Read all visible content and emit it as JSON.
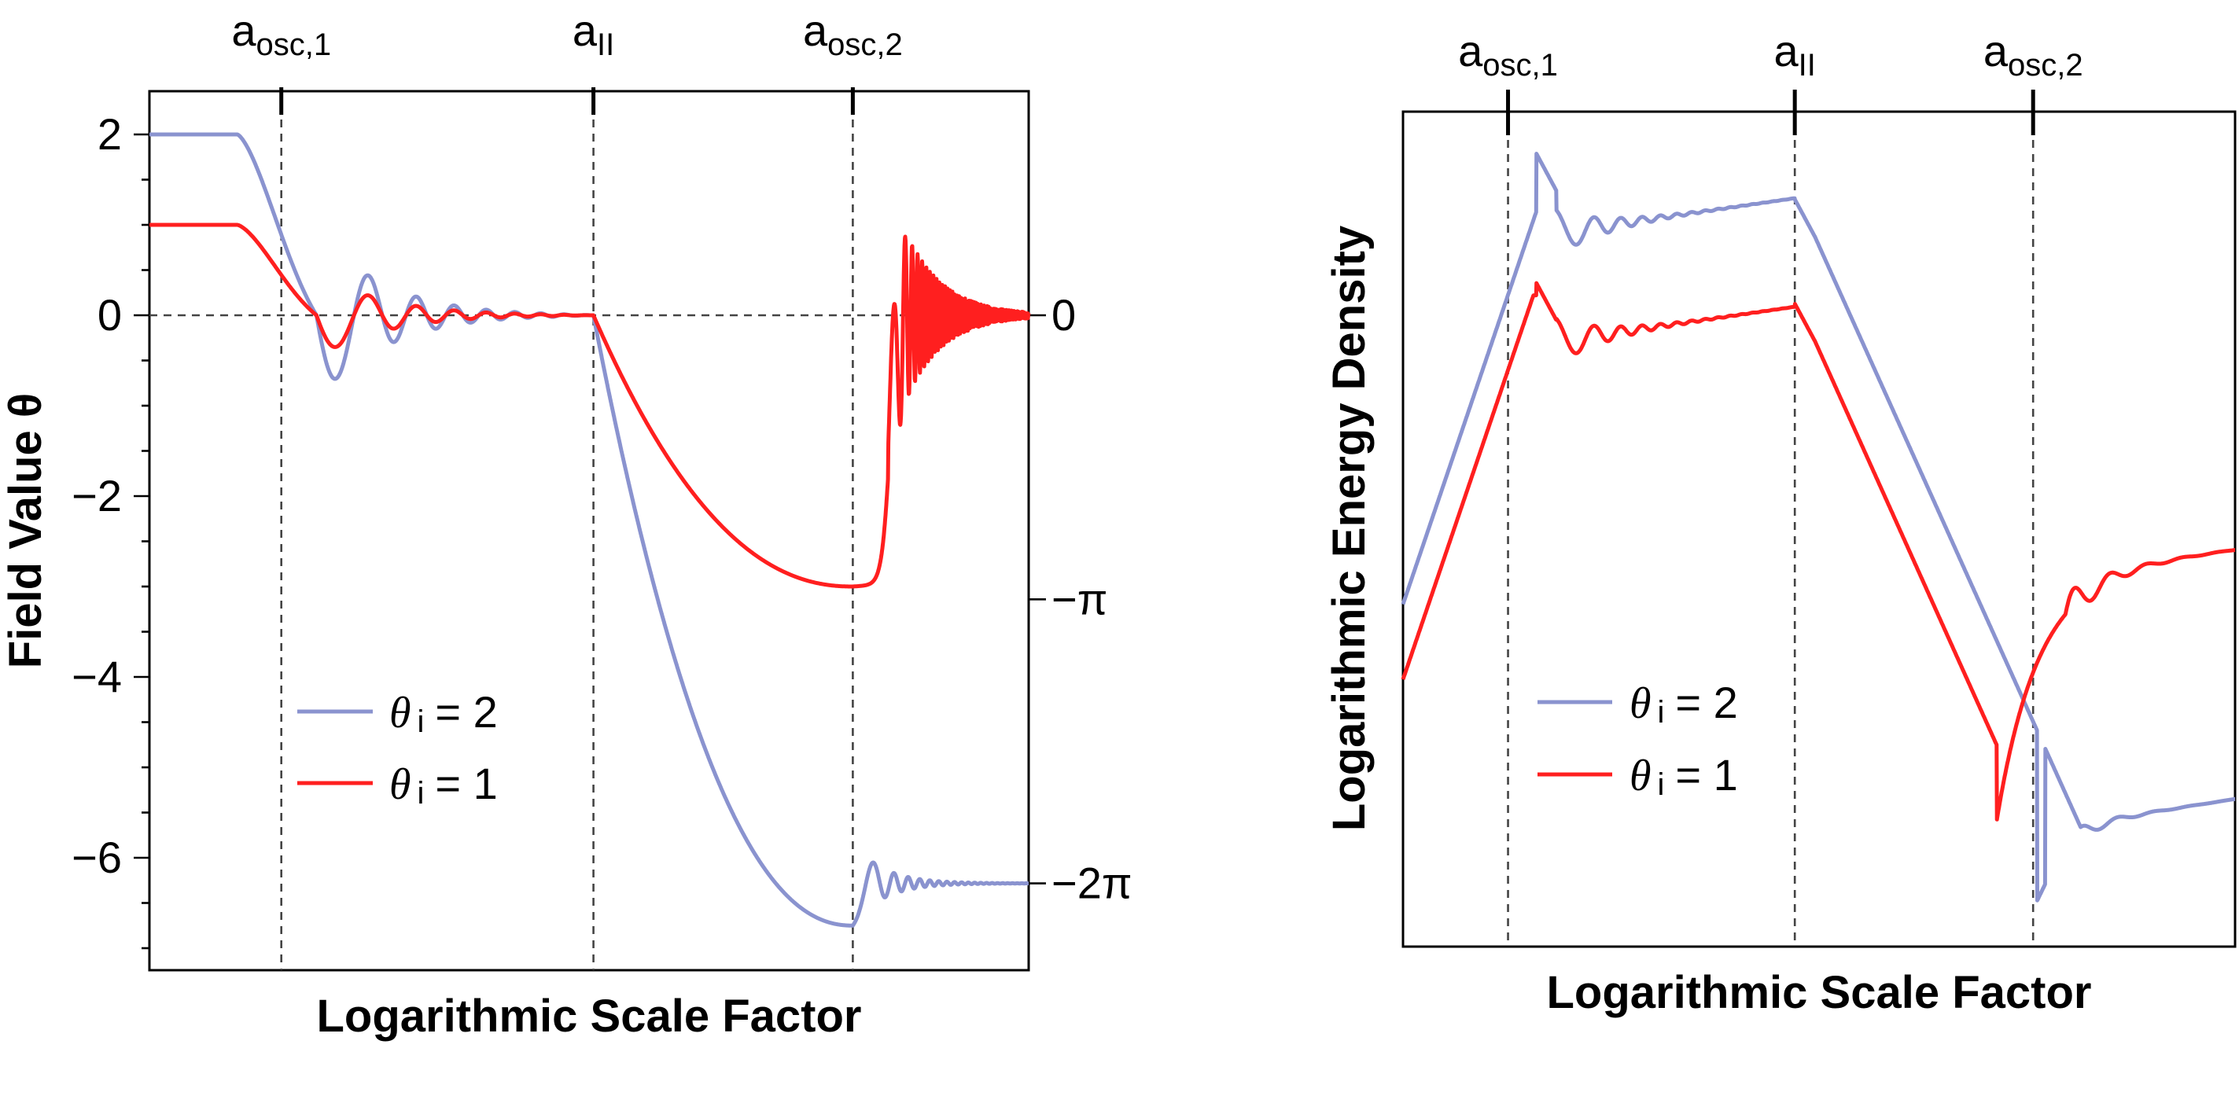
{
  "figure": {
    "description_panels": 2
  },
  "colors": {
    "theta2": "#8a93cf",
    "theta1": "#ff1f1f",
    "guide": "#444444"
  },
  "chart_data": [
    {
      "type": "line",
      "panel": "left",
      "xlabel": "Logarithmic Scale Factor",
      "ylabel": "Field Value θ",
      "ylim": [
        -7.3,
        2.5
      ],
      "xlim": [
        0,
        10
      ],
      "yticks": [
        "2",
        "0",
        "−2",
        "−4",
        "−6"
      ],
      "ytick_values": [
        2,
        0,
        -2,
        -4,
        -6
      ],
      "right_ticks": [
        {
          "label": "0",
          "value": 0
        },
        {
          "label": "−π",
          "value": -3.14159
        },
        {
          "label": "−2π",
          "value": -6.28318
        }
      ],
      "markers": [
        {
          "label_main": "a",
          "label_sub": "osc,1",
          "x": 1.5
        },
        {
          "label_main": "a",
          "label_sub": "II",
          "x": 5.05
        },
        {
          "label_main": "a",
          "label_sub": "osc,2",
          "x": 8.0
        }
      ],
      "legend": [
        {
          "symbol": "θ",
          "sub": "i",
          "text": "= 2",
          "color": "#8a93cf"
        },
        {
          "symbol": "θ",
          "sub": "i",
          "text": "= 1",
          "color": "#ff1f1f"
        }
      ],
      "series": [
        {
          "name": "θi = 2",
          "initial": 2
        },
        {
          "name": "θi = 1",
          "initial": 1
        }
      ]
    },
    {
      "type": "line",
      "panel": "right",
      "xlabel": "Logarithmic Scale Factor",
      "ylabel": "Logarithmic Energy Density",
      "xlim": [
        0,
        10
      ],
      "markers": [
        {
          "label_main": "a",
          "label_sub": "osc,1",
          "x": 1.5
        },
        {
          "label_main": "a",
          "label_sub": "II",
          "x": 5.05
        },
        {
          "label_main": "a",
          "label_sub": "osc,2",
          "x": 8.0
        }
      ],
      "legend": [
        {
          "symbol": "θ",
          "sub": "i",
          "text": "= 2",
          "color": "#8a93cf"
        },
        {
          "symbol": "θ",
          "sub": "i",
          "text": "= 1",
          "color": "#ff1f1f"
        }
      ],
      "series": [
        {
          "name": "θi = 2",
          "initial": 2
        },
        {
          "name": "θi = 1",
          "initial": 1
        }
      ]
    }
  ]
}
